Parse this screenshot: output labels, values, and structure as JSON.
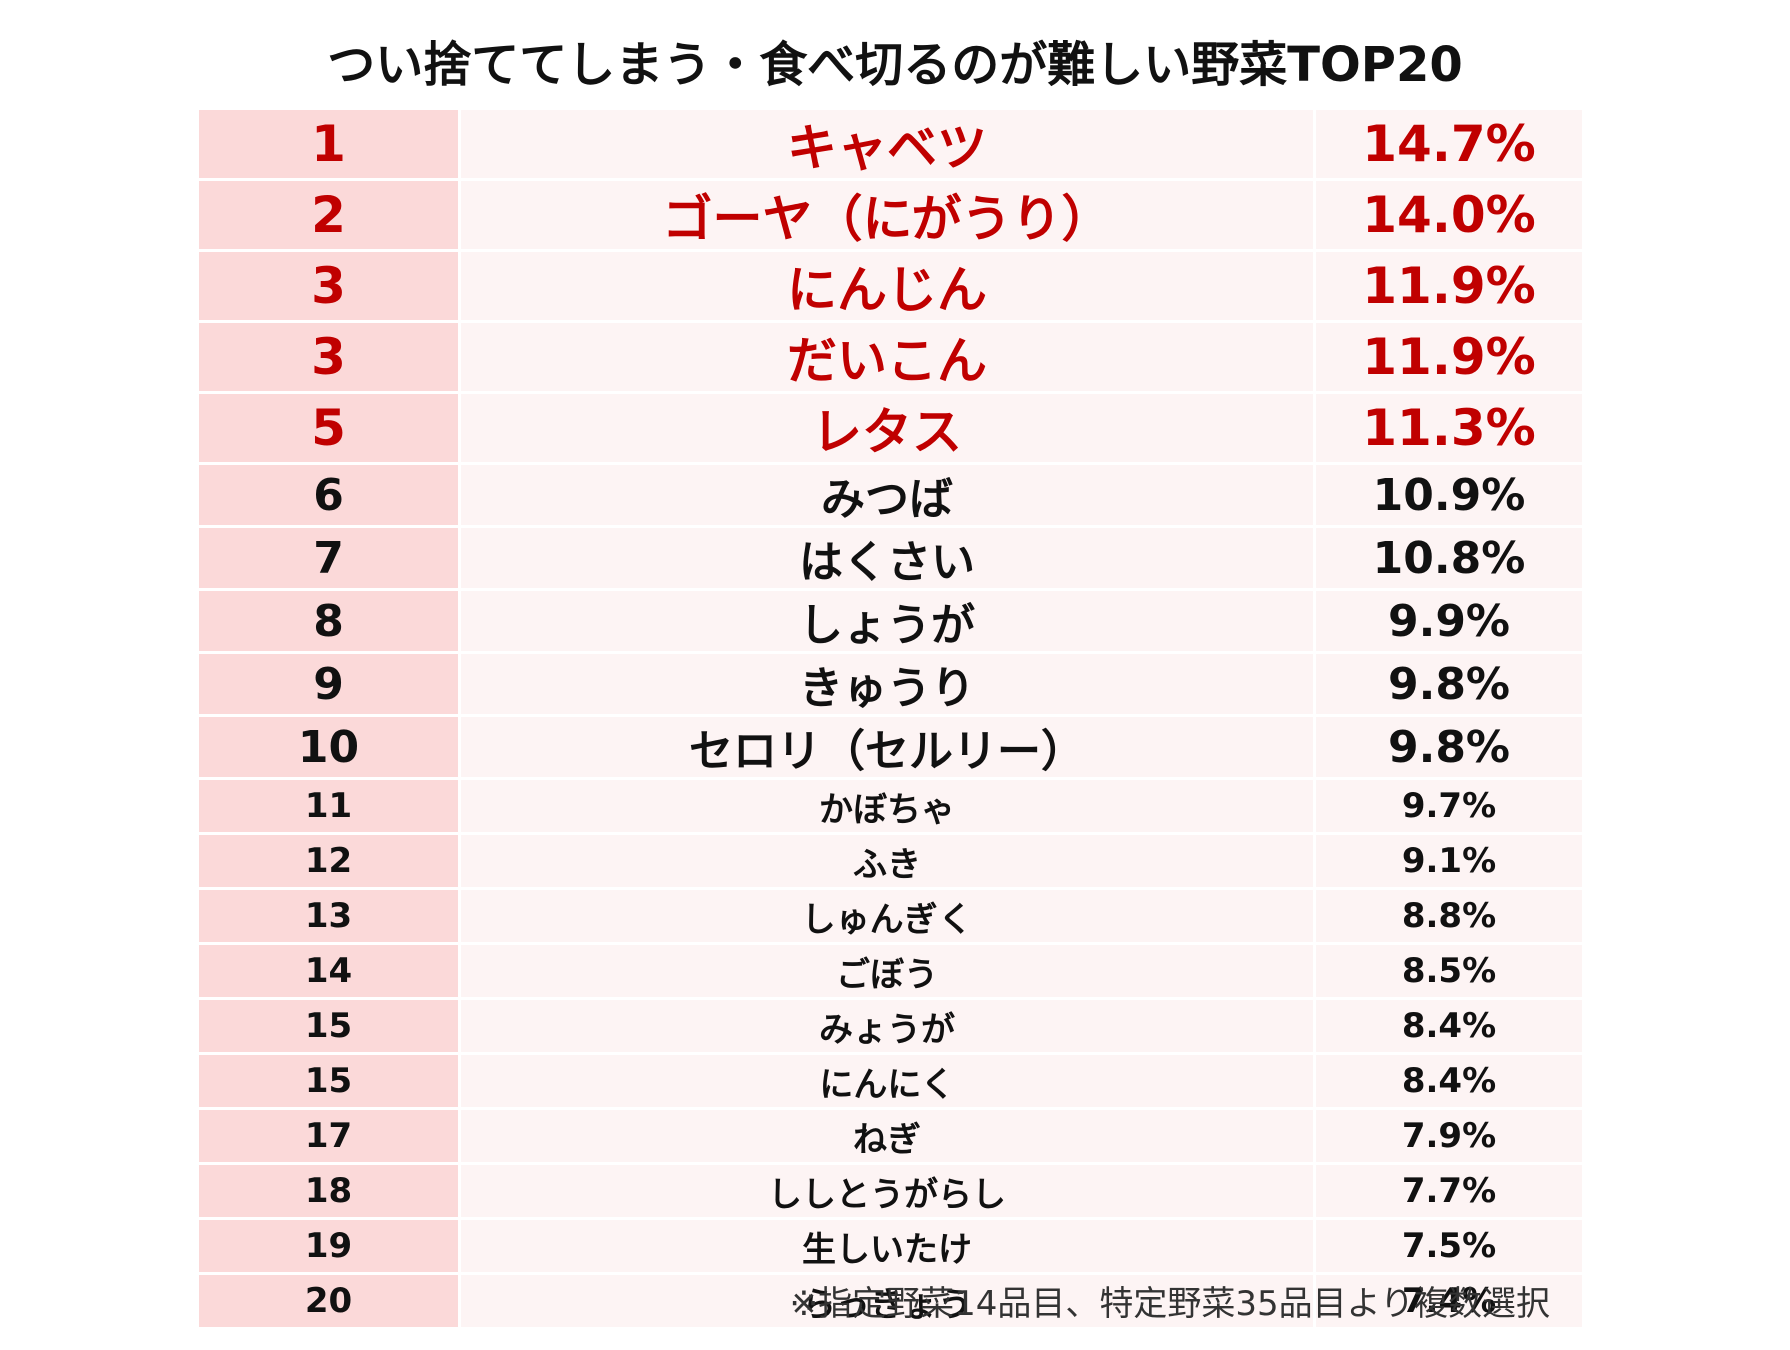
{
  "header": {
    "title": "つい捨ててしまう・食べ切るのが難しい野菜TOP20"
  },
  "chart_data": {
    "type": "table",
    "title": "つい捨ててしまう・食べ切るのが難しい野菜TOP20",
    "highlight_color": "#c00000",
    "rank_column_color": "#fbd9d9",
    "body_color": "#fdf4f4",
    "rows": [
      {
        "rank": "1",
        "name": "キャベツ",
        "value": "14.7%",
        "tier": "top"
      },
      {
        "rank": "2",
        "name": "ゴーヤ（にがうり）",
        "value": "14.0%",
        "tier": "top"
      },
      {
        "rank": "3",
        "name": "にんじん",
        "value": "11.9%",
        "tier": "top"
      },
      {
        "rank": "3",
        "name": "だいこん",
        "value": "11.9%",
        "tier": "top"
      },
      {
        "rank": "5",
        "name": "レタス",
        "value": "11.3%",
        "tier": "top"
      },
      {
        "rank": "6",
        "name": "みつば",
        "value": "10.9%",
        "tier": "mid"
      },
      {
        "rank": "7",
        "name": "はくさい",
        "value": "10.8%",
        "tier": "mid"
      },
      {
        "rank": "8",
        "name": "しょうが",
        "value": "9.9%",
        "tier": "mid"
      },
      {
        "rank": "9",
        "name": "きゅうり",
        "value": "9.8%",
        "tier": "mid"
      },
      {
        "rank": "10",
        "name": "セロリ（セルリー）",
        "value": "9.8%",
        "tier": "mid"
      },
      {
        "rank": "11",
        "name": "かぼちゃ",
        "value": "9.7%",
        "tier": "low"
      },
      {
        "rank": "12",
        "name": "ふき",
        "value": "9.1%",
        "tier": "low"
      },
      {
        "rank": "13",
        "name": "しゅんぎく",
        "value": "8.8%",
        "tier": "low"
      },
      {
        "rank": "14",
        "name": "ごぼう",
        "value": "8.5%",
        "tier": "low"
      },
      {
        "rank": "15",
        "name": "みょうが",
        "value": "8.4%",
        "tier": "low"
      },
      {
        "rank": "15",
        "name": "にんにく",
        "value": "8.4%",
        "tier": "low"
      },
      {
        "rank": "17",
        "name": "ねぎ",
        "value": "7.9%",
        "tier": "low"
      },
      {
        "rank": "18",
        "name": "ししとうがらし",
        "value": "7.7%",
        "tier": "low"
      },
      {
        "rank": "19",
        "name": "生しいたけ",
        "value": "7.5%",
        "tier": "low"
      },
      {
        "rank": "20",
        "name": "らっきょう",
        "value": "7.4%",
        "tier": "low"
      }
    ]
  },
  "footer": {
    "note": "※指定野菜14品目、特定野菜35品目より複数選択"
  }
}
